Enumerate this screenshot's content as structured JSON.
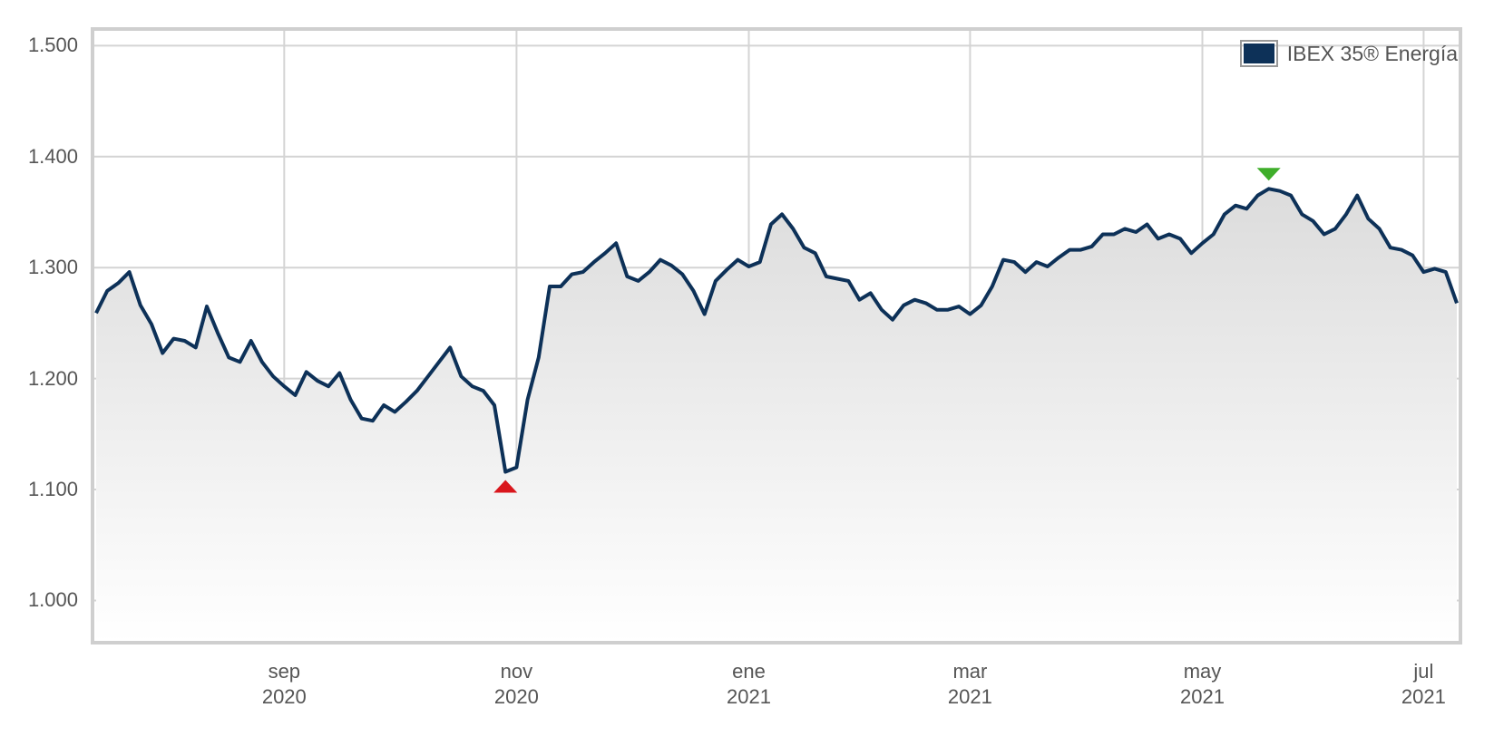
{
  "chart_data": {
    "type": "line",
    "categories": [
      null,
      null,
      null,
      null,
      null,
      null,
      null,
      null,
      null,
      null,
      null,
      null,
      null,
      null,
      null,
      null,
      null,
      "sep 2020",
      null,
      null,
      null,
      null,
      null,
      null,
      null,
      null,
      null,
      null,
      null,
      null,
      null,
      null,
      null,
      null,
      null,
      null,
      null,
      null,
      "nov 2020",
      null,
      null,
      null,
      null,
      null,
      null,
      null,
      null,
      null,
      null,
      null,
      null,
      null,
      null,
      null,
      null,
      null,
      null,
      null,
      null,
      "ene 2021",
      null,
      null,
      null,
      null,
      null,
      null,
      null,
      null,
      null,
      null,
      null,
      null,
      null,
      null,
      null,
      null,
      null,
      null,
      null,
      "mar 2021",
      null,
      null,
      null,
      null,
      null,
      null,
      null,
      null,
      null,
      null,
      null,
      null,
      null,
      null,
      null,
      null,
      null,
      null,
      null,
      null,
      "may 2021",
      null,
      null,
      null,
      null,
      null,
      null,
      null,
      null,
      null,
      null,
      null,
      null,
      null,
      null,
      null,
      null,
      null,
      null,
      null,
      "jul 2021",
      null,
      null,
      null
    ],
    "series": [
      {
        "name": "IBEX 35® Energía",
        "color": "#0d3158",
        "values": [
          1259,
          1279,
          1286,
          1296,
          1266,
          1249,
          1223,
          1236,
          1234,
          1228,
          1265,
          1241,
          1219,
          1215,
          1234,
          1215,
          1202,
          1193,
          1185,
          1206,
          1198,
          1193,
          1205,
          1181,
          1164,
          1162,
          1176,
          1170,
          1179,
          1189,
          1202,
          1215,
          1228,
          1202,
          1193,
          1189,
          1176,
          1116,
          1120,
          1181,
          1219,
          1283,
          1283,
          1294,
          1296,
          1305,
          1313,
          1322,
          1292,
          1288,
          1296,
          1307,
          1302,
          1294,
          1279,
          1258,
          1288,
          1298,
          1307,
          1301,
          1305,
          1339,
          1348,
          1335,
          1318,
          1313,
          1292,
          1290,
          1288,
          1271,
          1277,
          1262,
          1253,
          1266,
          1271,
          1268,
          1262,
          1262,
          1265,
          1258,
          1266,
          1283,
          1307,
          1305,
          1296,
          1305,
          1301,
          1309,
          1316,
          1316,
          1319,
          1330,
          1330,
          1335,
          1332,
          1339,
          1326,
          1330,
          1326,
          1313,
          1322,
          1330,
          1348,
          1356,
          1353,
          1365,
          1371,
          1369,
          1365,
          1348,
          1342,
          1330,
          1335,
          1348,
          1365,
          1344,
          1335,
          1318,
          1316,
          1311,
          1296,
          1299,
          1296,
          1268
        ]
      }
    ],
    "ylim": [
      962,
      1515
    ],
    "yticks": [
      {
        "value": 1000,
        "label": "1.000"
      },
      {
        "value": 1100,
        "label": "1.100"
      },
      {
        "value": 1200,
        "label": "1.200"
      },
      {
        "value": 1300,
        "label": "1.300"
      },
      {
        "value": 1400,
        "label": "1.400"
      },
      {
        "value": 1500,
        "label": "1.500"
      }
    ],
    "grid": true,
    "legend": "top-right"
  }
}
